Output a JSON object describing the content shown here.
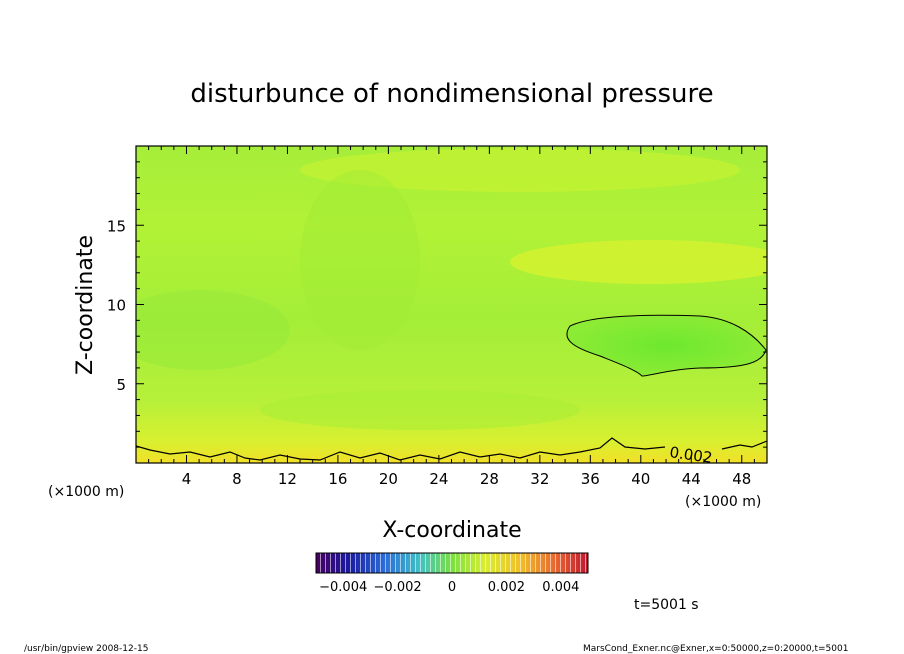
{
  "chart_data": {
    "type": "heatmap",
    "title": "disturbunce of nondimensional pressure",
    "xlabel": "X-coordinate",
    "ylabel": "Z-coordinate",
    "x_unit": "(×1000 m)",
    "y_unit": "(×1000 m)",
    "xlim": [
      0,
      50
    ],
    "ylim": [
      0,
      20
    ],
    "x_ticks": [
      4,
      8,
      12,
      16,
      20,
      24,
      28,
      32,
      36,
      40,
      44,
      48
    ],
    "y_ticks": [
      5,
      10,
      15
    ],
    "contour_label": "0.002",
    "colorbar": {
      "vmin": -0.005,
      "vmax": 0.005,
      "tick_labels": [
        "−0.004",
        "−0.002",
        "0",
        "0.002",
        "0.004"
      ],
      "tick_values": [
        -0.004,
        -0.002,
        0,
        0.002,
        0.004
      ]
    },
    "approx_field": {
      "background_value": 0.0022,
      "surface_layer_value": 0.0028,
      "low_region": {
        "x_range": [
          34,
          50
        ],
        "z_range": [
          5.5,
          9.5
        ],
        "value": 0.0016
      }
    },
    "time_label": "t=5001 s"
  },
  "footer": {
    "left": "/usr/bin/gpview   2008-12-15",
    "right": "MarsCond_Exner.nc@Exner,x=0:50000,z=0:20000,t=5001"
  }
}
